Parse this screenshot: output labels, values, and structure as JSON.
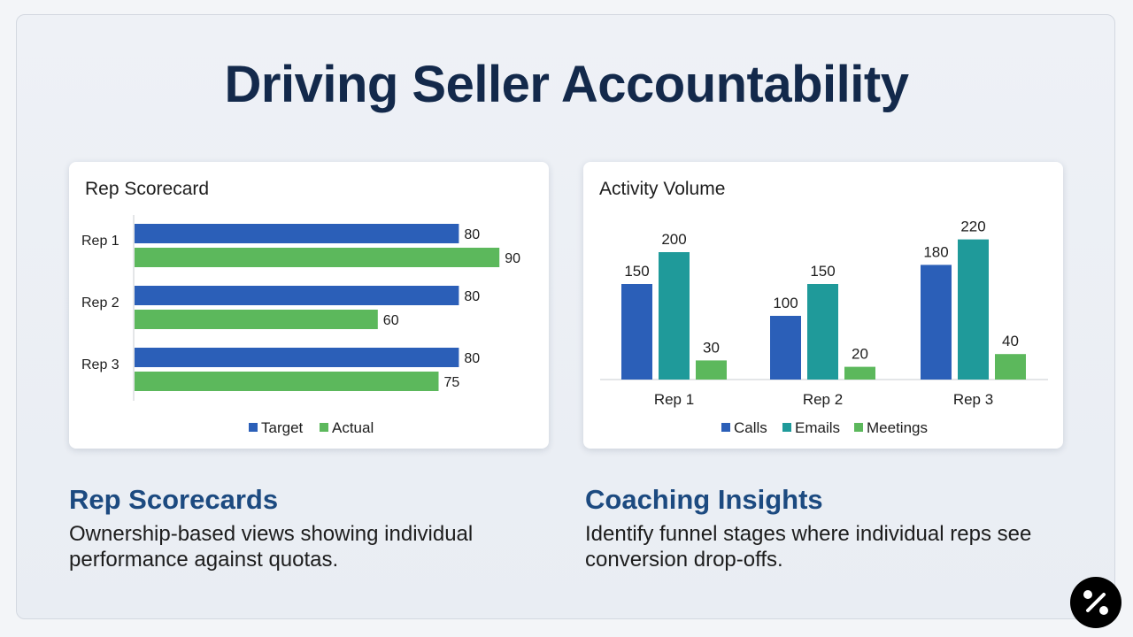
{
  "title": "Driving Seller Accountability",
  "colors": {
    "target": "#2b5fb8",
    "actual": "#5cb85c",
    "calls": "#2b5fb8",
    "emails": "#1f9a9a",
    "meetings": "#5cb85c",
    "title": "#13294b",
    "heading": "#1c4a80"
  },
  "chart_data": [
    {
      "type": "bar",
      "orientation": "horizontal",
      "title": "Rep Scorecard",
      "categories": [
        "Rep 1",
        "Rep 2",
        "Rep 3"
      ],
      "series": [
        {
          "name": "Target",
          "values": [
            80,
            80,
            80
          ]
        },
        {
          "name": "Actual",
          "values": [
            90,
            60,
            75
          ]
        }
      ],
      "xlim": [
        0,
        100
      ],
      "grid": false,
      "legend": "bottom"
    },
    {
      "type": "bar",
      "orientation": "vertical",
      "title": "Activity Volume",
      "categories": [
        "Rep 1",
        "Rep 2",
        "Rep 3"
      ],
      "series": [
        {
          "name": "Calls",
          "values": [
            150,
            100,
            180
          ]
        },
        {
          "name": "Emails",
          "values": [
            200,
            150,
            220
          ]
        },
        {
          "name": "Meetings",
          "values": [
            30,
            20,
            40
          ]
        }
      ],
      "ylim": [
        0,
        250
      ],
      "grid": false,
      "legend": "bottom"
    }
  ],
  "sections": [
    {
      "heading": "Rep Scorecards",
      "lines": [
        "Ownership-based views showing individual",
        "performance against quotas."
      ]
    },
    {
      "heading": "Coaching Insights",
      "lines": [
        "Identify funnel stages where individual reps see",
        "conversion drop-offs."
      ]
    }
  ]
}
